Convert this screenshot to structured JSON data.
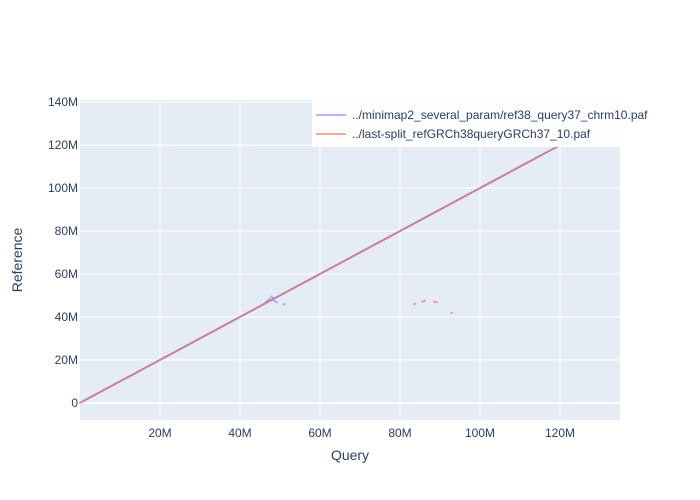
{
  "chart_data": {
    "type": "line",
    "title": "",
    "xlabel": "Query",
    "ylabel": "Reference",
    "xlim": [
      0,
      135000000
    ],
    "ylim": [
      -8000000,
      141000000
    ],
    "xticks": [
      20000000,
      40000000,
      60000000,
      80000000,
      100000000,
      120000000
    ],
    "xtick_labels": [
      "20M",
      "40M",
      "60M",
      "80M",
      "100M",
      "120M"
    ],
    "yticks": [
      0,
      20000000,
      40000000,
      60000000,
      80000000,
      100000000,
      120000000,
      140000000
    ],
    "ytick_labels": [
      "0",
      "20M",
      "40M",
      "60M",
      "80M",
      "100M",
      "120M",
      "140M"
    ],
    "grid": true,
    "legend_position": "top-right",
    "series": [
      {
        "name": "../minimap2_several_param/ref38_query37_chrm10.paf",
        "color": "#636efa",
        "segments": [
          [
            [
              0,
              0
            ],
            [
              121000000,
              121000000
            ]
          ],
          [
            [
              46500000,
              47000000
            ],
            [
              47500000,
              48500000
            ]
          ],
          [
            [
              47800000,
              49500000
            ],
            [
              48300000,
              48800000
            ]
          ],
          [
            [
              48500000,
              47500000
            ],
            [
              49200000,
              46800000
            ]
          ],
          [
            [
              50800000,
              46000000
            ],
            [
              51200000,
              45800000
            ]
          ]
        ]
      },
      {
        "name": "../last-split_refGRCh38queryGRCh37_10.paf",
        "color": "#ef553b",
        "segments": [
          [
            [
              0,
              0
            ],
            [
              121000000,
              121000000
            ]
          ],
          [
            [
              83500000,
              46000000
            ],
            [
              83900000,
              46100000
            ]
          ],
          [
            [
              85500000,
              47000000
            ],
            [
              86300000,
              47600000
            ]
          ],
          [
            [
              88500000,
              47000000
            ],
            [
              89300000,
              46800000
            ]
          ],
          [
            [
              92800000,
              42000000
            ],
            [
              93000000,
              41800000
            ]
          ]
        ]
      }
    ]
  }
}
